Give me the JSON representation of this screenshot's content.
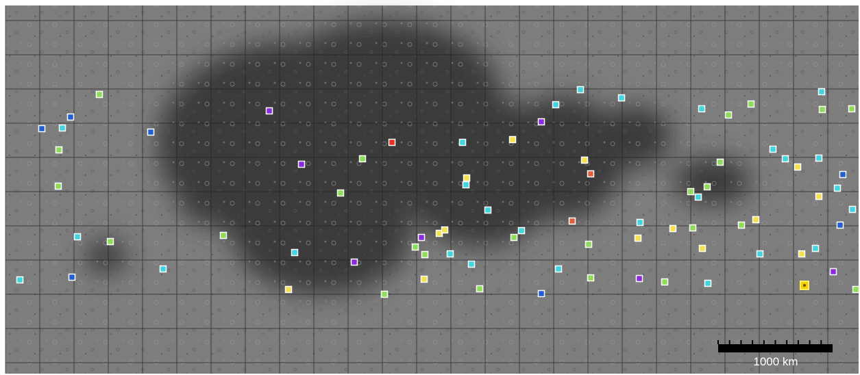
{
  "scale_bar": {
    "label": "1000 km"
  }
}
